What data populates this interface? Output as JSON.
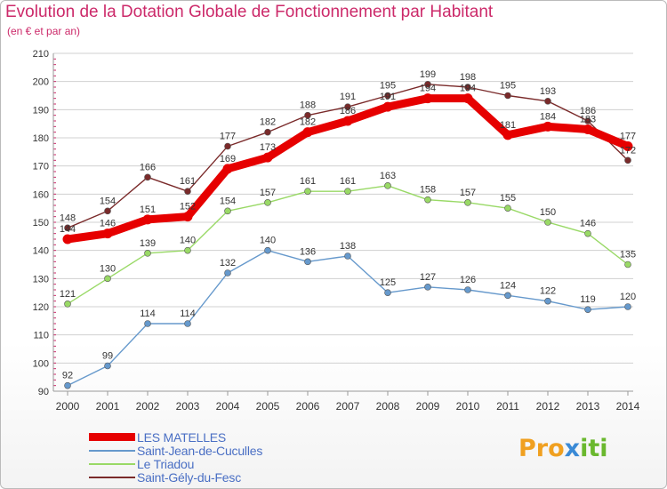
{
  "header": {
    "title": "Evolution de la Dotation Globale de Fonctionnement par Habitant",
    "subtitle": "(en € et par an)"
  },
  "logo": {
    "text": "Proxiti"
  },
  "colors": {
    "title": "#cc2a6a",
    "axis_text": "#333333",
    "grid": "#d0d0d0",
    "legend_text": "#4a6fc4"
  },
  "chart_data": {
    "type": "line",
    "title": "Evolution de la Dotation Globale de Fonctionnement par Habitant",
    "ylabel": "(en € et par an)",
    "xlabel": "",
    "x": [
      2000,
      2001,
      2002,
      2003,
      2004,
      2005,
      2006,
      2007,
      2008,
      2009,
      2010,
      2011,
      2012,
      2013,
      2014
    ],
    "ylim": [
      90,
      210
    ],
    "yticks": [
      90,
      100,
      110,
      120,
      130,
      140,
      150,
      160,
      170,
      180,
      190,
      200,
      210
    ],
    "grid": "horizontal",
    "legend_position": "bottom-left",
    "series": [
      {
        "name": "LES MATELLES",
        "color": "#e60000",
        "style": "thick",
        "values": [
          144,
          146,
          151,
          152,
          169,
          173,
          182,
          186,
          191,
          194,
          194,
          181,
          184,
          183,
          177
        ]
      },
      {
        "name": "Saint-Jean-de-Cuculles",
        "color": "#6699cc",
        "style": "thin",
        "values": [
          92,
          99,
          114,
          114,
          132,
          140,
          136,
          138,
          125,
          127,
          126,
          124,
          122,
          119,
          120
        ]
      },
      {
        "name": "Le Triadou",
        "color": "#99d966",
        "style": "thin",
        "values": [
          121,
          130,
          139,
          140,
          154,
          157,
          161,
          161,
          163,
          158,
          157,
          155,
          150,
          146,
          135
        ]
      },
      {
        "name": "Saint-Gély-du-Fesc",
        "color": "#7a2a2a",
        "style": "thin",
        "values": [
          148,
          154,
          166,
          161,
          177,
          182,
          188,
          191,
          195,
          199,
          198,
          195,
          193,
          186,
          172
        ]
      }
    ]
  }
}
